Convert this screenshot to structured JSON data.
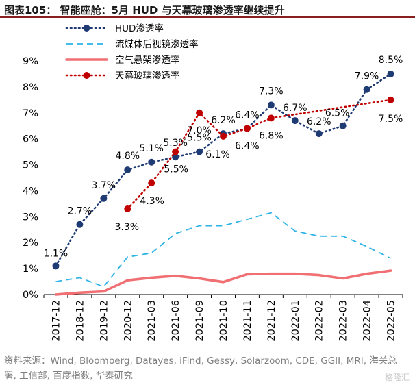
{
  "figure": {
    "title": "图表105：  智能座舱：5月 HUD 与天幕玻璃渗透率继续提升",
    "source": "资料来源：Wind, Bloomberg, Datayes, iFind, Gessy, Solarzoom, CDE, GGII, MRI, 海关总署, 工信部, 百度指数, 华泰研究",
    "watermark": "格隆汇"
  },
  "chart_data": {
    "type": "line",
    "title": "",
    "xlabel": "",
    "ylabel": "",
    "ylim": [
      0,
      9
    ],
    "yticks": [
      "0%",
      "1%",
      "2%",
      "3%",
      "4%",
      "5%",
      "6%",
      "7%",
      "8%",
      "9%"
    ],
    "grid": false,
    "legend_position": "top-left",
    "categories": [
      "2017-12",
      "2018-12",
      "2019-12",
      "2020-12",
      "2021-03",
      "2021-06",
      "2021-09",
      "2021-10",
      "2021-11",
      "2021-12",
      "2022-01",
      "2022-02",
      "2022-03",
      "2022-04",
      "2022-05"
    ],
    "series": [
      {
        "name": "HUD渗透率",
        "color": "#1f3b73",
        "style": "dotted-markers",
        "values": [
          1.1,
          2.7,
          3.7,
          4.8,
          5.1,
          5.3,
          5.5,
          6.2,
          6.4,
          7.3,
          6.7,
          6.2,
          6.5,
          7.9,
          8.5
        ],
        "labels": [
          "1.1%",
          "2.7%",
          "3.7%",
          "4.8%",
          "5.1%",
          "5.3%",
          "5.5%",
          "6.2%",
          "6.4%",
          "7.3%",
          "6.7%",
          "6.2%",
          "6.5%",
          "7.9%",
          "8.5%"
        ]
      },
      {
        "name": "流媒体后视镜渗透率",
        "color": "#2eb3e6",
        "style": "dashed",
        "values": [
          0.5,
          0.65,
          0.3,
          1.45,
          1.6,
          2.35,
          2.65,
          2.65,
          2.9,
          3.15,
          2.45,
          2.25,
          2.25,
          1.85,
          1.4
        ],
        "labels": []
      },
      {
        "name": "空气悬架渗透率",
        "color": "#ef6f73",
        "style": "solid",
        "values": [
          0.0,
          0.07,
          0.12,
          0.55,
          0.65,
          0.72,
          0.62,
          0.48,
          0.78,
          0.8,
          0.8,
          0.75,
          0.62,
          0.8,
          0.92
        ],
        "labels": []
      },
      {
        "name": "天幕玻璃渗透率",
        "color": "#c00000",
        "style": "dotted-markers",
        "values": [
          null,
          null,
          null,
          3.3,
          4.3,
          5.5,
          7.0,
          6.1,
          6.4,
          6.8,
          null,
          null,
          null,
          null,
          7.5
        ],
        "labels": [
          null,
          null,
          null,
          "3.3%",
          "4.3%",
          "5.5%",
          "7.0%",
          "6.1%",
          "6.4%",
          "6.8%",
          null,
          null,
          null,
          null,
          "7.5%"
        ]
      }
    ]
  }
}
